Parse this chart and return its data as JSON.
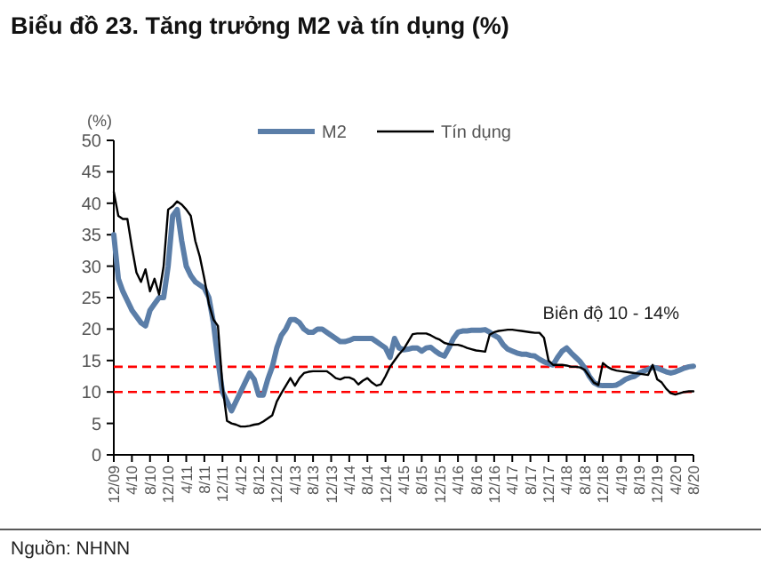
{
  "chart_data": {
    "type": "line",
    "title": "Biểu đồ 23. Tăng trưởng M2 và tín dụng (%)",
    "ylabel": "(%)",
    "categories": [
      "12/09",
      null,
      null,
      null,
      "4/10",
      null,
      null,
      null,
      "8/10",
      null,
      null,
      null,
      "12/10",
      null,
      null,
      null,
      "4/11",
      null,
      null,
      null,
      "8/11",
      null,
      null,
      null,
      "12/11",
      null,
      null,
      null,
      "4/12",
      null,
      null,
      null,
      "8/12",
      null,
      null,
      null,
      "12/12",
      null,
      null,
      null,
      "4/13",
      null,
      null,
      null,
      "8/13",
      null,
      null,
      null,
      "12/13",
      null,
      null,
      null,
      "4/14",
      null,
      null,
      null,
      "8/14",
      null,
      null,
      null,
      "12/14",
      null,
      null,
      null,
      "4/15",
      null,
      null,
      null,
      "8/15",
      null,
      null,
      null,
      "12/15",
      null,
      null,
      null,
      "4/16",
      null,
      null,
      null,
      "8/16",
      null,
      null,
      null,
      "12/16",
      null,
      null,
      null,
      "4/17",
      null,
      null,
      null,
      "8/17",
      null,
      null,
      null,
      "12/17",
      null,
      null,
      null,
      "4/18",
      null,
      null,
      null,
      "8/18",
      null,
      null,
      null,
      "12/18",
      null,
      null,
      null,
      "4/19",
      null,
      null,
      null,
      "8/19",
      null,
      null,
      null,
      "12/19",
      null,
      null,
      null,
      "4/20",
      null,
      null,
      null,
      "8/20"
    ],
    "series": [
      {
        "name": "M2",
        "color": "#5b7ea8",
        "values": [
          35,
          28,
          26,
          24.5,
          23,
          22,
          21,
          20.5,
          23,
          24,
          25,
          25,
          30,
          38,
          39,
          34,
          30,
          28.5,
          27.5,
          27,
          26.5,
          25,
          21,
          15,
          10,
          8.5,
          7,
          8.5,
          10,
          11.5,
          13,
          12,
          9.5,
          9.5,
          12,
          14,
          17,
          19,
          20,
          21.5,
          21.5,
          21,
          20,
          19.5,
          19.5,
          20,
          20,
          19.5,
          19,
          18.5,
          18,
          18,
          18.2,
          18.5,
          18.5,
          18.5,
          18.5,
          18.5,
          18,
          17.5,
          17,
          15.5,
          18.5,
          17,
          16.7,
          16.8,
          17,
          17,
          16.5,
          17,
          17.1,
          16.5,
          16,
          15.7,
          17,
          18.5,
          19.5,
          19.7,
          19.7,
          19.8,
          19.8,
          19.8,
          19.9,
          19.5,
          19,
          18.6,
          17.5,
          16.8,
          16.5,
          16.2,
          16,
          16,
          15.8,
          15.7,
          15.2,
          14.8,
          14.5,
          14.3,
          15.5,
          16.5,
          17,
          16.2,
          15.5,
          14.8,
          13.8,
          12.5,
          11.5,
          11.1,
          11,
          11,
          11,
          11.1,
          11.5,
          12,
          12.3,
          12.5,
          13,
          13.3,
          13.6,
          13.9,
          13.8,
          13.5,
          13.2,
          13,
          13.2,
          13.5,
          13.8,
          14,
          14.1
        ]
      },
      {
        "name": "Tín dụng",
        "color": "#000000",
        "values": [
          41.8,
          38,
          37.5,
          37.5,
          33,
          29,
          27.5,
          29.5,
          26,
          28,
          25.5,
          30,
          39,
          39.5,
          40.3,
          39.8,
          39,
          38,
          34,
          31.5,
          28,
          24,
          21.5,
          20.5,
          11,
          5.4,
          5,
          4.8,
          4.5,
          4.5,
          4.6,
          4.8,
          4.9,
          5.3,
          5.8,
          6.3,
          8.5,
          9.8,
          11,
          12.2,
          11,
          12.2,
          13,
          13.2,
          13.3,
          13.3,
          13.3,
          13.3,
          12.8,
          12.2,
          12,
          12.3,
          12.3,
          12,
          11.2,
          11.8,
          12.2,
          11.5,
          11,
          11.2,
          12.5,
          14,
          15,
          16,
          16.8,
          18,
          19.2,
          19.3,
          19.3,
          19.3,
          19,
          18.6,
          18.3,
          17.8,
          17.6,
          17.5,
          17.5,
          17.3,
          17,
          16.8,
          16.6,
          16.5,
          16.4,
          19.1,
          19.5,
          19.7,
          19.8,
          19.9,
          19.9,
          19.8,
          19.7,
          19.6,
          19.5,
          19.4,
          19.4,
          18.6,
          15,
          14.3,
          14.3,
          14.3,
          14.2,
          14,
          14,
          13.9,
          13.5,
          12.5,
          11.5,
          11.1,
          14.6,
          14,
          13.6,
          13.4,
          13.3,
          13.2,
          13.1,
          13,
          12.9,
          12.8,
          12.7,
          14.3,
          12,
          11.5,
          10.5,
          9.8,
          9.6,
          9.8,
          10,
          10.1,
          10.1
        ]
      }
    ],
    "ylim": [
      0,
      50
    ],
    "yticks": [
      0,
      5,
      10,
      15,
      20,
      25,
      30,
      35,
      40,
      45,
      50
    ],
    "grid": false,
    "legend": "top",
    "marker": "none",
    "line_style": "solid",
    "ref_lines": [
      {
        "axis": "y",
        "value": 14,
        "label": "Biên độ 10 - 14%",
        "color": "#ff0000",
        "line_style": "dashed"
      },
      {
        "axis": "y",
        "value": 10,
        "color": "#ff0000",
        "line_style": "dashed"
      }
    ],
    "annotations": [
      "Nguồn: NHNN"
    ]
  }
}
